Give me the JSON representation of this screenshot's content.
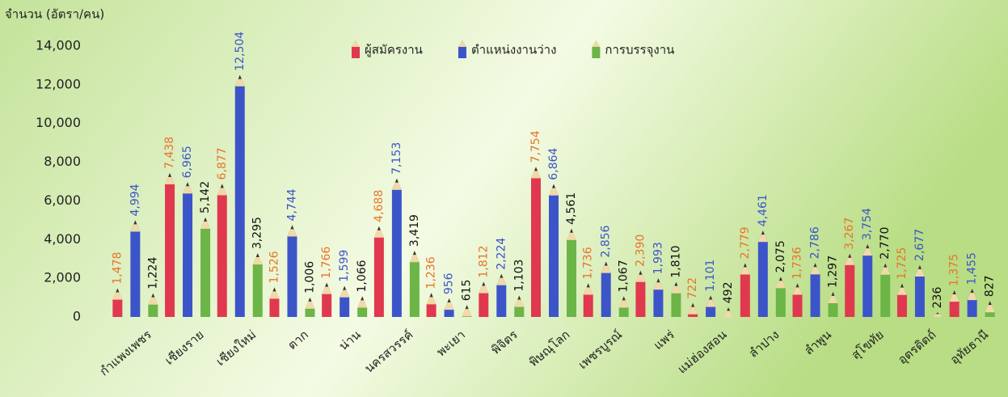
{
  "chart_data": {
    "type": "bar",
    "y_axis_label": "จำนวน (อัตรา/คน)",
    "categories": [
      "กำแพงเพชร",
      "เชียงราย",
      "เชียงใหม่",
      "ตาก",
      "น่าน",
      "นครสวรรค์",
      "พะเยา",
      "พิจิตร",
      "พิษณุโลก",
      "เพชรบูรณ์",
      "แพร่",
      "แม่ฮ่องสอน",
      "ลำปาง",
      "ลำพูน",
      "สุโขทัย",
      "อุตรดิตถ์",
      "อุทัยธานี"
    ],
    "series": [
      {
        "name": "ผู้สมัครงาน",
        "color": "#e0384f",
        "label_color": "#e8742a",
        "values": [
          1478,
          7438,
          6877,
          1526,
          1766,
          4688,
          1236,
          1812,
          7754,
          1736,
          2390,
          722,
          2779,
          1736,
          3267,
          1725,
          1375
        ],
        "value_labels": [
          "1,478",
          "7,438",
          "6,877",
          "1,526",
          "1,766",
          "4,688",
          "1,236",
          "1,812",
          "7,754",
          "1,736",
          "2,390",
          "722",
          "2,779",
          "1,736",
          "3,267",
          "1,725",
          "1,375"
        ]
      },
      {
        "name": "ตำแหน่งงานว่าง",
        "color": "#3b55c9",
        "label_color": "#3b55c9",
        "values": [
          4994,
          6965,
          12504,
          4744,
          1599,
          7153,
          956,
          2224,
          6864,
          2856,
          1993,
          1101,
          4461,
          2786,
          3754,
          2677,
          1455
        ],
        "value_labels": [
          "4,994",
          "6,965",
          "12,504",
          "4,744",
          "1,599",
          "7,153",
          "956",
          "2,224",
          "6,864",
          "2,856",
          "1,993",
          "1,101",
          "4,461",
          "2,786",
          "3,754",
          "2,677",
          "1,455"
        ]
      },
      {
        "name": "การบรรจุงาน",
        "color": "#6cb547",
        "label_color": "#111111",
        "values": [
          1224,
          5142,
          3295,
          1006,
          1066,
          3419,
          615,
          1103,
          4561,
          1067,
          1810,
          492,
          2075,
          1297,
          2770,
          236,
          827
        ],
        "value_labels": [
          "1,224",
          "5,142",
          "3,295",
          "1,006",
          "1,066",
          "3,419",
          "615",
          "1,103",
          "4,561",
          "1,067",
          "1,810",
          "492",
          "2,075",
          "1,297",
          "2,770",
          "236",
          "827"
        ]
      }
    ],
    "ylim": [
      0,
      14000
    ],
    "yticks": [
      0,
      {
        "value": 2000,
        "label": "2,000"
      },
      {
        "value": 4000,
        "label": "4,000"
      },
      {
        "value": 6000,
        "label": "6,000"
      },
      {
        "value": 8000,
        "label": "8,000"
      },
      {
        "value": 10000,
        "label": "10,000"
      },
      {
        "value": 12000,
        "label": "12,000"
      },
      {
        "value": 14000,
        "label": "14,000"
      }
    ],
    "legend": "top"
  }
}
